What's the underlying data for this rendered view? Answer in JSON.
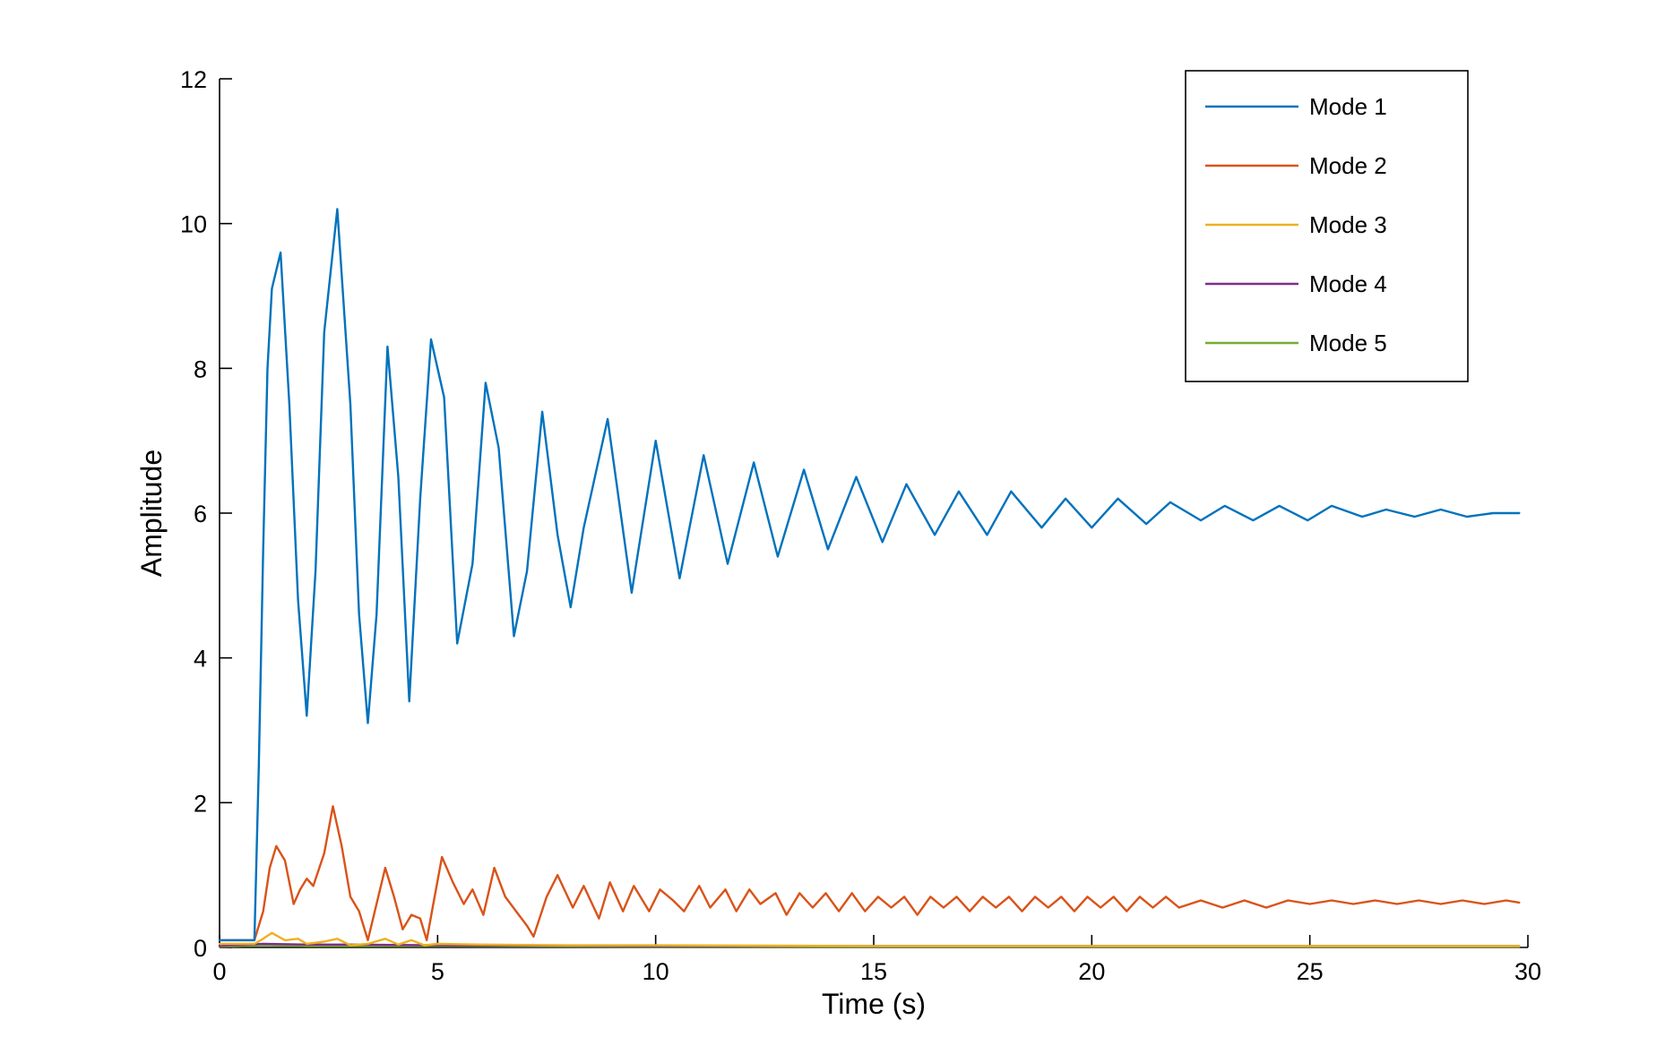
{
  "chart_data": {
    "type": "line",
    "title": "",
    "xlabel": "Time (s)",
    "ylabel": "Amplitude",
    "xlim": [
      0,
      30
    ],
    "ylim": [
      0,
      12
    ],
    "xticks": [
      0,
      5,
      10,
      15,
      20,
      25,
      30
    ],
    "yticks": [
      0,
      2,
      4,
      6,
      8,
      10,
      12
    ],
    "xtick_labels": [
      "0",
      "5",
      "10",
      "15",
      "20",
      "25",
      "30"
    ],
    "ytick_labels": [
      "0",
      "2",
      "4",
      "6",
      "8",
      "10",
      "12"
    ],
    "grid": false,
    "legend_position": "top-right",
    "series": [
      {
        "name": "Mode 1",
        "color": "#0072bd",
        "x": [
          0,
          0.3,
          0.6,
          0.8,
          0.9,
          1.0,
          1.1,
          1.2,
          1.4,
          1.6,
          1.8,
          2.0,
          2.2,
          2.4,
          2.7,
          3.0,
          3.2,
          3.4,
          3.6,
          3.85,
          4.1,
          4.35,
          4.6,
          4.85,
          5.15,
          5.45,
          5.8,
          6.1,
          6.4,
          6.75,
          7.05,
          7.4,
          7.75,
          8.05,
          8.35,
          8.9,
          9.45,
          10.0,
          10.55,
          11.1,
          11.65,
          12.25,
          12.8,
          13.4,
          13.95,
          14.6,
          15.2,
          15.75,
          16.4,
          16.95,
          17.6,
          18.15,
          18.85,
          19.4,
          20.0,
          20.6,
          21.25,
          21.8,
          22.5,
          23.05,
          23.7,
          24.3,
          24.95,
          25.5,
          26.2,
          26.75,
          27.4,
          28.0,
          28.6,
          29.2,
          29.8
        ],
        "y": [
          0.1,
          0.1,
          0.1,
          0.1,
          2.5,
          5.5,
          8.0,
          9.1,
          9.6,
          7.5,
          4.8,
          3.2,
          5.2,
          8.5,
          10.2,
          7.5,
          4.6,
          3.1,
          4.6,
          8.3,
          6.5,
          3.4,
          6.2,
          8.4,
          7.6,
          4.2,
          5.3,
          7.8,
          6.9,
          4.3,
          5.2,
          7.4,
          5.7,
          4.7,
          5.8,
          7.3,
          4.9,
          7.0,
          5.1,
          6.8,
          5.3,
          6.7,
          5.4,
          6.6,
          5.5,
          6.5,
          5.6,
          6.4,
          5.7,
          6.3,
          5.7,
          6.3,
          5.8,
          6.2,
          5.8,
          6.2,
          5.85,
          6.15,
          5.9,
          6.1,
          5.9,
          6.1,
          5.9,
          6.1,
          5.95,
          6.05,
          5.95,
          6.05,
          5.95,
          6.0,
          6.0
        ]
      },
      {
        "name": "Mode 2",
        "color": "#d95319",
        "x": [
          0,
          0.3,
          0.6,
          0.8,
          1.0,
          1.15,
          1.3,
          1.5,
          1.7,
          1.85,
          2.0,
          2.15,
          2.4,
          2.6,
          2.8,
          3.0,
          3.2,
          3.4,
          3.6,
          3.8,
          4.0,
          4.2,
          4.4,
          4.6,
          4.75,
          4.9,
          5.1,
          5.35,
          5.6,
          5.8,
          6.05,
          6.3,
          6.55,
          6.8,
          7.05,
          7.2,
          7.5,
          7.75,
          8.1,
          8.35,
          8.7,
          8.95,
          9.25,
          9.5,
          9.85,
          10.1,
          10.4,
          10.65,
          11.0,
          11.25,
          11.6,
          11.85,
          12.15,
          12.4,
          12.75,
          13.0,
          13.3,
          13.6,
          13.9,
          14.2,
          14.5,
          14.8,
          15.1,
          15.4,
          15.7,
          16.0,
          16.3,
          16.6,
          16.9,
          17.2,
          17.5,
          17.8,
          18.1,
          18.4,
          18.7,
          19.0,
          19.3,
          19.6,
          19.9,
          20.2,
          20.5,
          20.8,
          21.1,
          21.4,
          21.7,
          22.0,
          22.5,
          23.0,
          23.5,
          24.0,
          24.5,
          25.0,
          25.5,
          26.0,
          26.5,
          27.0,
          27.5,
          28.0,
          28.5,
          29.0,
          29.5,
          29.8
        ],
        "y": [
          0.1,
          0.1,
          0.1,
          0.1,
          0.5,
          1.1,
          1.4,
          1.2,
          0.6,
          0.8,
          0.95,
          0.85,
          1.3,
          1.95,
          1.4,
          0.7,
          0.5,
          0.1,
          0.6,
          1.1,
          0.7,
          0.25,
          0.45,
          0.4,
          0.1,
          0.6,
          1.25,
          0.9,
          0.6,
          0.8,
          0.45,
          1.1,
          0.7,
          0.5,
          0.3,
          0.15,
          0.7,
          1.0,
          0.55,
          0.85,
          0.4,
          0.9,
          0.5,
          0.85,
          0.5,
          0.8,
          0.65,
          0.5,
          0.85,
          0.55,
          0.8,
          0.5,
          0.8,
          0.6,
          0.75,
          0.45,
          0.75,
          0.55,
          0.75,
          0.5,
          0.75,
          0.5,
          0.7,
          0.55,
          0.7,
          0.45,
          0.7,
          0.55,
          0.7,
          0.5,
          0.7,
          0.55,
          0.7,
          0.5,
          0.7,
          0.55,
          0.7,
          0.5,
          0.7,
          0.55,
          0.7,
          0.5,
          0.7,
          0.55,
          0.7,
          0.55,
          0.65,
          0.55,
          0.65,
          0.55,
          0.65,
          0.6,
          0.65,
          0.6,
          0.65,
          0.6,
          0.65,
          0.6,
          0.65,
          0.6,
          0.65,
          0.62
        ]
      },
      {
        "name": "Mode 3",
        "color": "#edb120",
        "x": [
          0,
          0.8,
          1.0,
          1.2,
          1.5,
          1.8,
          2.0,
          2.4,
          2.7,
          3.0,
          3.4,
          3.8,
          4.1,
          4.4,
          4.7,
          5.0,
          6.0,
          8.0,
          10.0,
          15.0,
          20.0,
          25.0,
          29.8
        ],
        "y": [
          0.05,
          0.05,
          0.12,
          0.2,
          0.1,
          0.12,
          0.05,
          0.08,
          0.12,
          0.03,
          0.05,
          0.12,
          0.04,
          0.1,
          0.03,
          0.05,
          0.04,
          0.03,
          0.03,
          0.02,
          0.02,
          0.02,
          0.02
        ]
      },
      {
        "name": "Mode 4",
        "color": "#7e2f8e",
        "x": [
          0,
          1.0,
          2.0,
          3.0,
          5.0,
          10.0,
          15.0,
          20.0,
          25.0,
          29.8
        ],
        "y": [
          0.02,
          0.05,
          0.04,
          0.04,
          0.03,
          0.02,
          0.02,
          0.02,
          0.02,
          0.02
        ]
      },
      {
        "name": "Mode 5",
        "color": "#77ac30",
        "x": [
          0,
          1.0,
          2.0,
          3.0,
          5.0,
          10.0,
          15.0,
          20.0,
          25.0,
          29.8
        ],
        "y": [
          0.01,
          0.03,
          0.02,
          0.02,
          0.02,
          0.01,
          0.01,
          0.01,
          0.01,
          0.01
        ]
      }
    ]
  }
}
